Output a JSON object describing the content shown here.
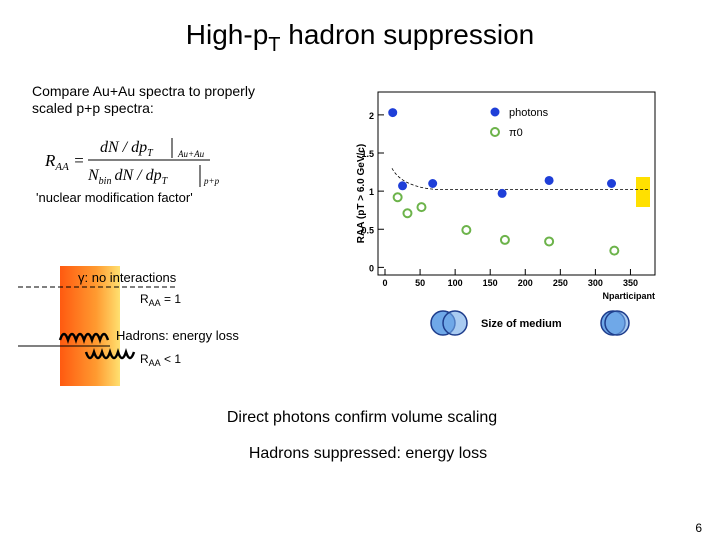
{
  "title": {
    "main": "High-p",
    "sub": "T",
    "rest": " hadron suppression"
  },
  "intro": [
    "Compare Au+Au spectra to properly",
    "scaled p+p spectra:"
  ],
  "formula": {
    "lhs": "R",
    "lhs_sub": "AA",
    "num": "dN / dp",
    "num_sub": "T",
    "num_tag": "Au+Au",
    "den_n": "N",
    "den_n_sub": "bin",
    "den": "dN / dp",
    "den_sub": "T",
    "den_tag": "p+p"
  },
  "formula_caption": "'nuclear modification factor'",
  "diagram": {
    "gamma": "γ: no interactions",
    "raa1": "R",
    "raa1_sub": "AA",
    "raa1_rest": " = 1",
    "hadrons": "Hadrons: energy loss",
    "raa2": "R",
    "raa2_sub": "AA",
    "raa2_rest": " < 1",
    "medium": "Size of medium"
  },
  "conclusions": [
    "Direct photons confirm volume scaling",
    "Hadrons suppressed: energy loss"
  ],
  "page_number": "6",
  "chart_data": {
    "type": "scatter",
    "y_label": "RAA (pT > 6.0 GeV/c)",
    "x_label": "Nparticipant",
    "xlim": [
      -10,
      385
    ],
    "ylim": [
      -0.1,
      2.3
    ],
    "xticks": [
      0,
      50,
      100,
      150,
      200,
      250,
      300,
      350
    ],
    "yticks": [
      0,
      0.5,
      1,
      1.5,
      2
    ],
    "legend": "top-right",
    "series": [
      {
        "name": "photons",
        "color": "#1f3fd8",
        "marker": "filled",
        "x": [
          11,
          25,
          68,
          167,
          234,
          323
        ],
        "values": [
          2.03,
          1.07,
          1.1,
          0.97,
          1.14,
          1.1
        ]
      },
      {
        "name": "π0",
        "color": "#6cb34a",
        "marker": "hollow",
        "x": [
          18,
          32,
          52,
          116,
          171,
          234,
          327
        ],
        "values": [
          0.92,
          0.71,
          0.79,
          0.49,
          0.36,
          0.34,
          0.22
        ]
      }
    ]
  }
}
